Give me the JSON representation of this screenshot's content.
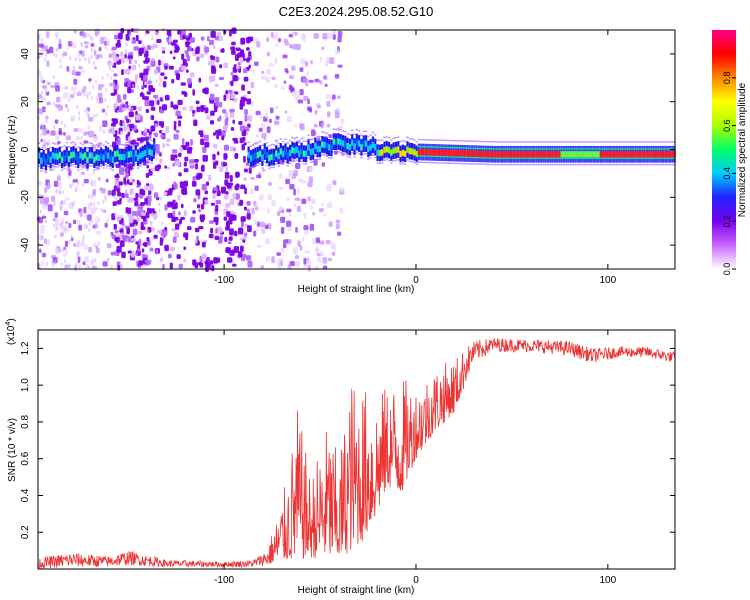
{
  "title": "C2E3.2024.295.08.52.G10",
  "chart_data": [
    {
      "type": "heatmap",
      "xlabel": "Height of straight line (km)",
      "ylabel": "Frequency (Hz)",
      "xlim": [
        -197,
        135
      ],
      "ylim": [
        -50,
        50
      ],
      "xticks": [
        -100,
        0,
        100
      ],
      "xtick_labels": [
        "-100",
        "0",
        "100"
      ],
      "yticks": [
        -40,
        -20,
        0,
        20,
        40
      ],
      "ytick_labels": [
        "-40",
        "-20",
        "0",
        "20",
        "40"
      ],
      "colorbar": {
        "label": "Normalized spectral amplitude",
        "range": [
          0,
          1
        ],
        "ticks": [
          0.0,
          0.2,
          0.4,
          0.6,
          0.8
        ],
        "tick_labels": [
          "0.0",
          "0.2",
          "0.4",
          "0.6",
          "0.8"
        ],
        "colors": [
          "#ffffff",
          "#cc66ff",
          "#7700ee",
          "#2222ff",
          "#00ccff",
          "#00ff66",
          "#aaff00",
          "#ffff00",
          "#ff8800",
          "#ff0000",
          "#ff0088"
        ]
      },
      "ridge": [
        {
          "x": -195,
          "f": -4
        },
        {
          "x": -180,
          "f": -3
        },
        {
          "x": -160,
          "f": -3
        },
        {
          "x": -145,
          "f": -2
        },
        {
          "x": -137,
          "f": 0
        },
        {
          "x": -90,
          "f": -3
        },
        {
          "x": -75,
          "f": -2
        },
        {
          "x": -60,
          "f": -1
        },
        {
          "x": -50,
          "f": 1
        },
        {
          "x": -40,
          "f": 3
        },
        {
          "x": -30,
          "f": 2
        },
        {
          "x": -20,
          "f": 0
        },
        {
          "x": 0,
          "f": -1
        },
        {
          "x": 40,
          "f": -2
        },
        {
          "x": 135,
          "f": -2
        }
      ]
    },
    {
      "type": "line",
      "xlabel": "Height of straight line (km)",
      "ylabel": "SNR (10 * v/v)",
      "y_multiplier": "(x10",
      "y_multiplier_exp": "4",
      "y_multiplier_close": ")",
      "xlim": [
        -197,
        135
      ],
      "ylim": [
        0,
        1.3
      ],
      "xticks": [
        -100,
        0,
        100
      ],
      "xtick_labels": [
        "-100",
        "0",
        "100"
      ],
      "yticks": [
        0.2,
        0.4,
        0.6,
        0.8,
        1.0,
        1.2
      ],
      "ytick_labels": [
        "0.2",
        "0.4",
        "0.6",
        "0.8",
        "1.0",
        "1.2"
      ],
      "color": "#ee3333",
      "envelope": [
        {
          "x": -197,
          "lo": 0.0,
          "hi": 0.06
        },
        {
          "x": -180,
          "lo": 0.01,
          "hi": 0.09
        },
        {
          "x": -160,
          "lo": 0.01,
          "hi": 0.07
        },
        {
          "x": -150,
          "lo": 0.02,
          "hi": 0.1
        },
        {
          "x": -130,
          "lo": 0.01,
          "hi": 0.05
        },
        {
          "x": -100,
          "lo": 0.01,
          "hi": 0.04
        },
        {
          "x": -85,
          "lo": 0.01,
          "hi": 0.05
        },
        {
          "x": -78,
          "lo": 0.02,
          "hi": 0.1
        },
        {
          "x": -72,
          "lo": 0.04,
          "hi": 0.3
        },
        {
          "x": -66,
          "lo": 0.05,
          "hi": 0.55
        },
        {
          "x": -62,
          "lo": 0.05,
          "hi": 0.9
        },
        {
          "x": -55,
          "lo": 0.06,
          "hi": 0.5
        },
        {
          "x": -46,
          "lo": 0.06,
          "hi": 0.8
        },
        {
          "x": -40,
          "lo": 0.05,
          "hi": 0.6
        },
        {
          "x": -34,
          "lo": 0.1,
          "hi": 1.05
        },
        {
          "x": -28,
          "lo": 0.15,
          "hi": 1.0
        },
        {
          "x": -20,
          "lo": 0.3,
          "hi": 0.95
        },
        {
          "x": -15,
          "lo": 0.45,
          "hi": 1.0
        },
        {
          "x": -8,
          "lo": 0.4,
          "hi": 1.05
        },
        {
          "x": 0,
          "lo": 0.6,
          "hi": 1.0
        },
        {
          "x": 10,
          "lo": 0.75,
          "hi": 1.1
        },
        {
          "x": 20,
          "lo": 0.85,
          "hi": 1.15
        },
        {
          "x": 30,
          "lo": 1.12,
          "hi": 1.24
        },
        {
          "x": 40,
          "lo": 1.18,
          "hi": 1.26
        },
        {
          "x": 60,
          "lo": 1.18,
          "hi": 1.25
        },
        {
          "x": 80,
          "lo": 1.16,
          "hi": 1.24
        },
        {
          "x": 92,
          "lo": 1.12,
          "hi": 1.2
        },
        {
          "x": 105,
          "lo": 1.15,
          "hi": 1.21
        },
        {
          "x": 120,
          "lo": 1.15,
          "hi": 1.21
        },
        {
          "x": 135,
          "lo": 1.12,
          "hi": 1.18
        }
      ]
    }
  ]
}
